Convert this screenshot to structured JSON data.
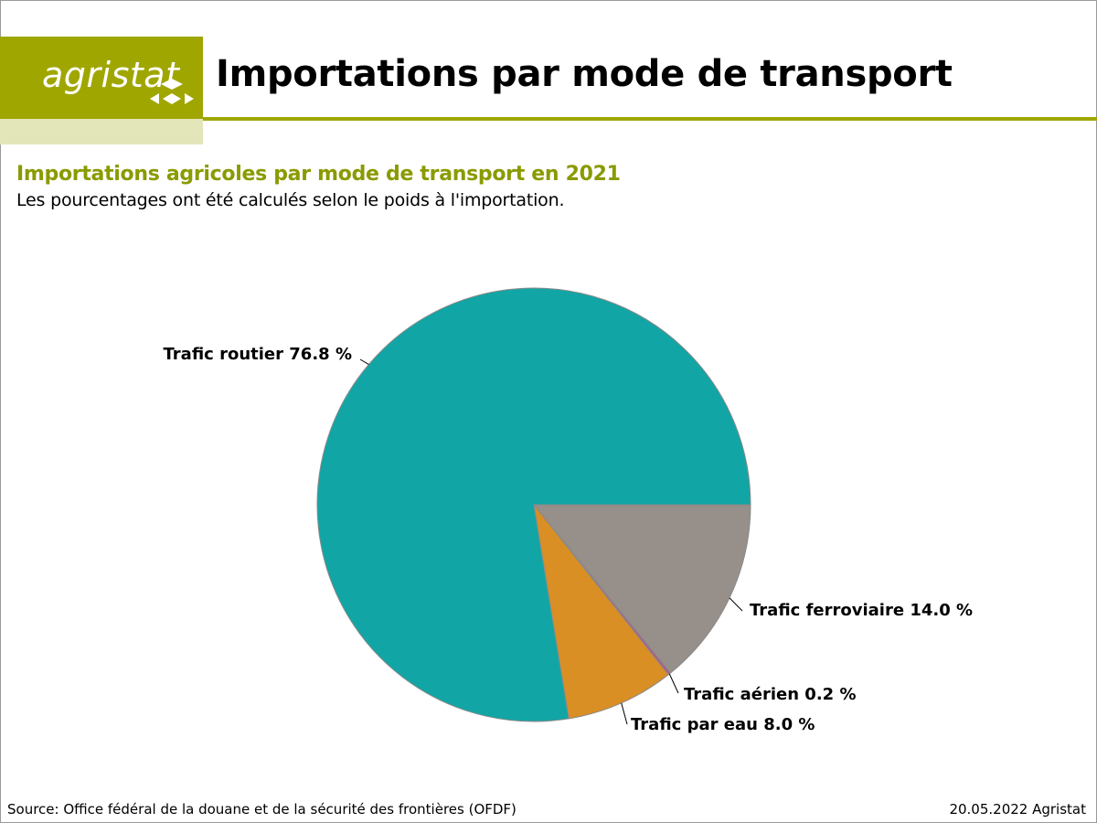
{
  "brand": {
    "logo_text": "agristat",
    "color": "#a0a600"
  },
  "header": {
    "title": "Importations par mode de transport"
  },
  "chart_data": {
    "type": "pie",
    "title": "Importations agricoles par mode de transport en 2021",
    "subtitle": "Les pourcentages ont été calculés selon le poids à l'importation.",
    "slices": [
      {
        "label": "Trafic ferroviaire 14.0 %",
        "value": 14.0,
        "color": "#968f8a"
      },
      {
        "label": "Trafic aérien 0.2 %",
        "value": 0.2,
        "color": "#b05a8a"
      },
      {
        "label": "Trafic par eau 8.0 %",
        "value": 8.0,
        "color": "#d98f24"
      },
      {
        "label": "Trafic routier 76.8 %",
        "value": 76.8,
        "color": "#12a5a5"
      }
    ]
  },
  "footer": {
    "source": "Source: Office fédéral de la douane et de la sécurité des frontières (OFDF)",
    "date": "20.05.2022 Agristat"
  }
}
